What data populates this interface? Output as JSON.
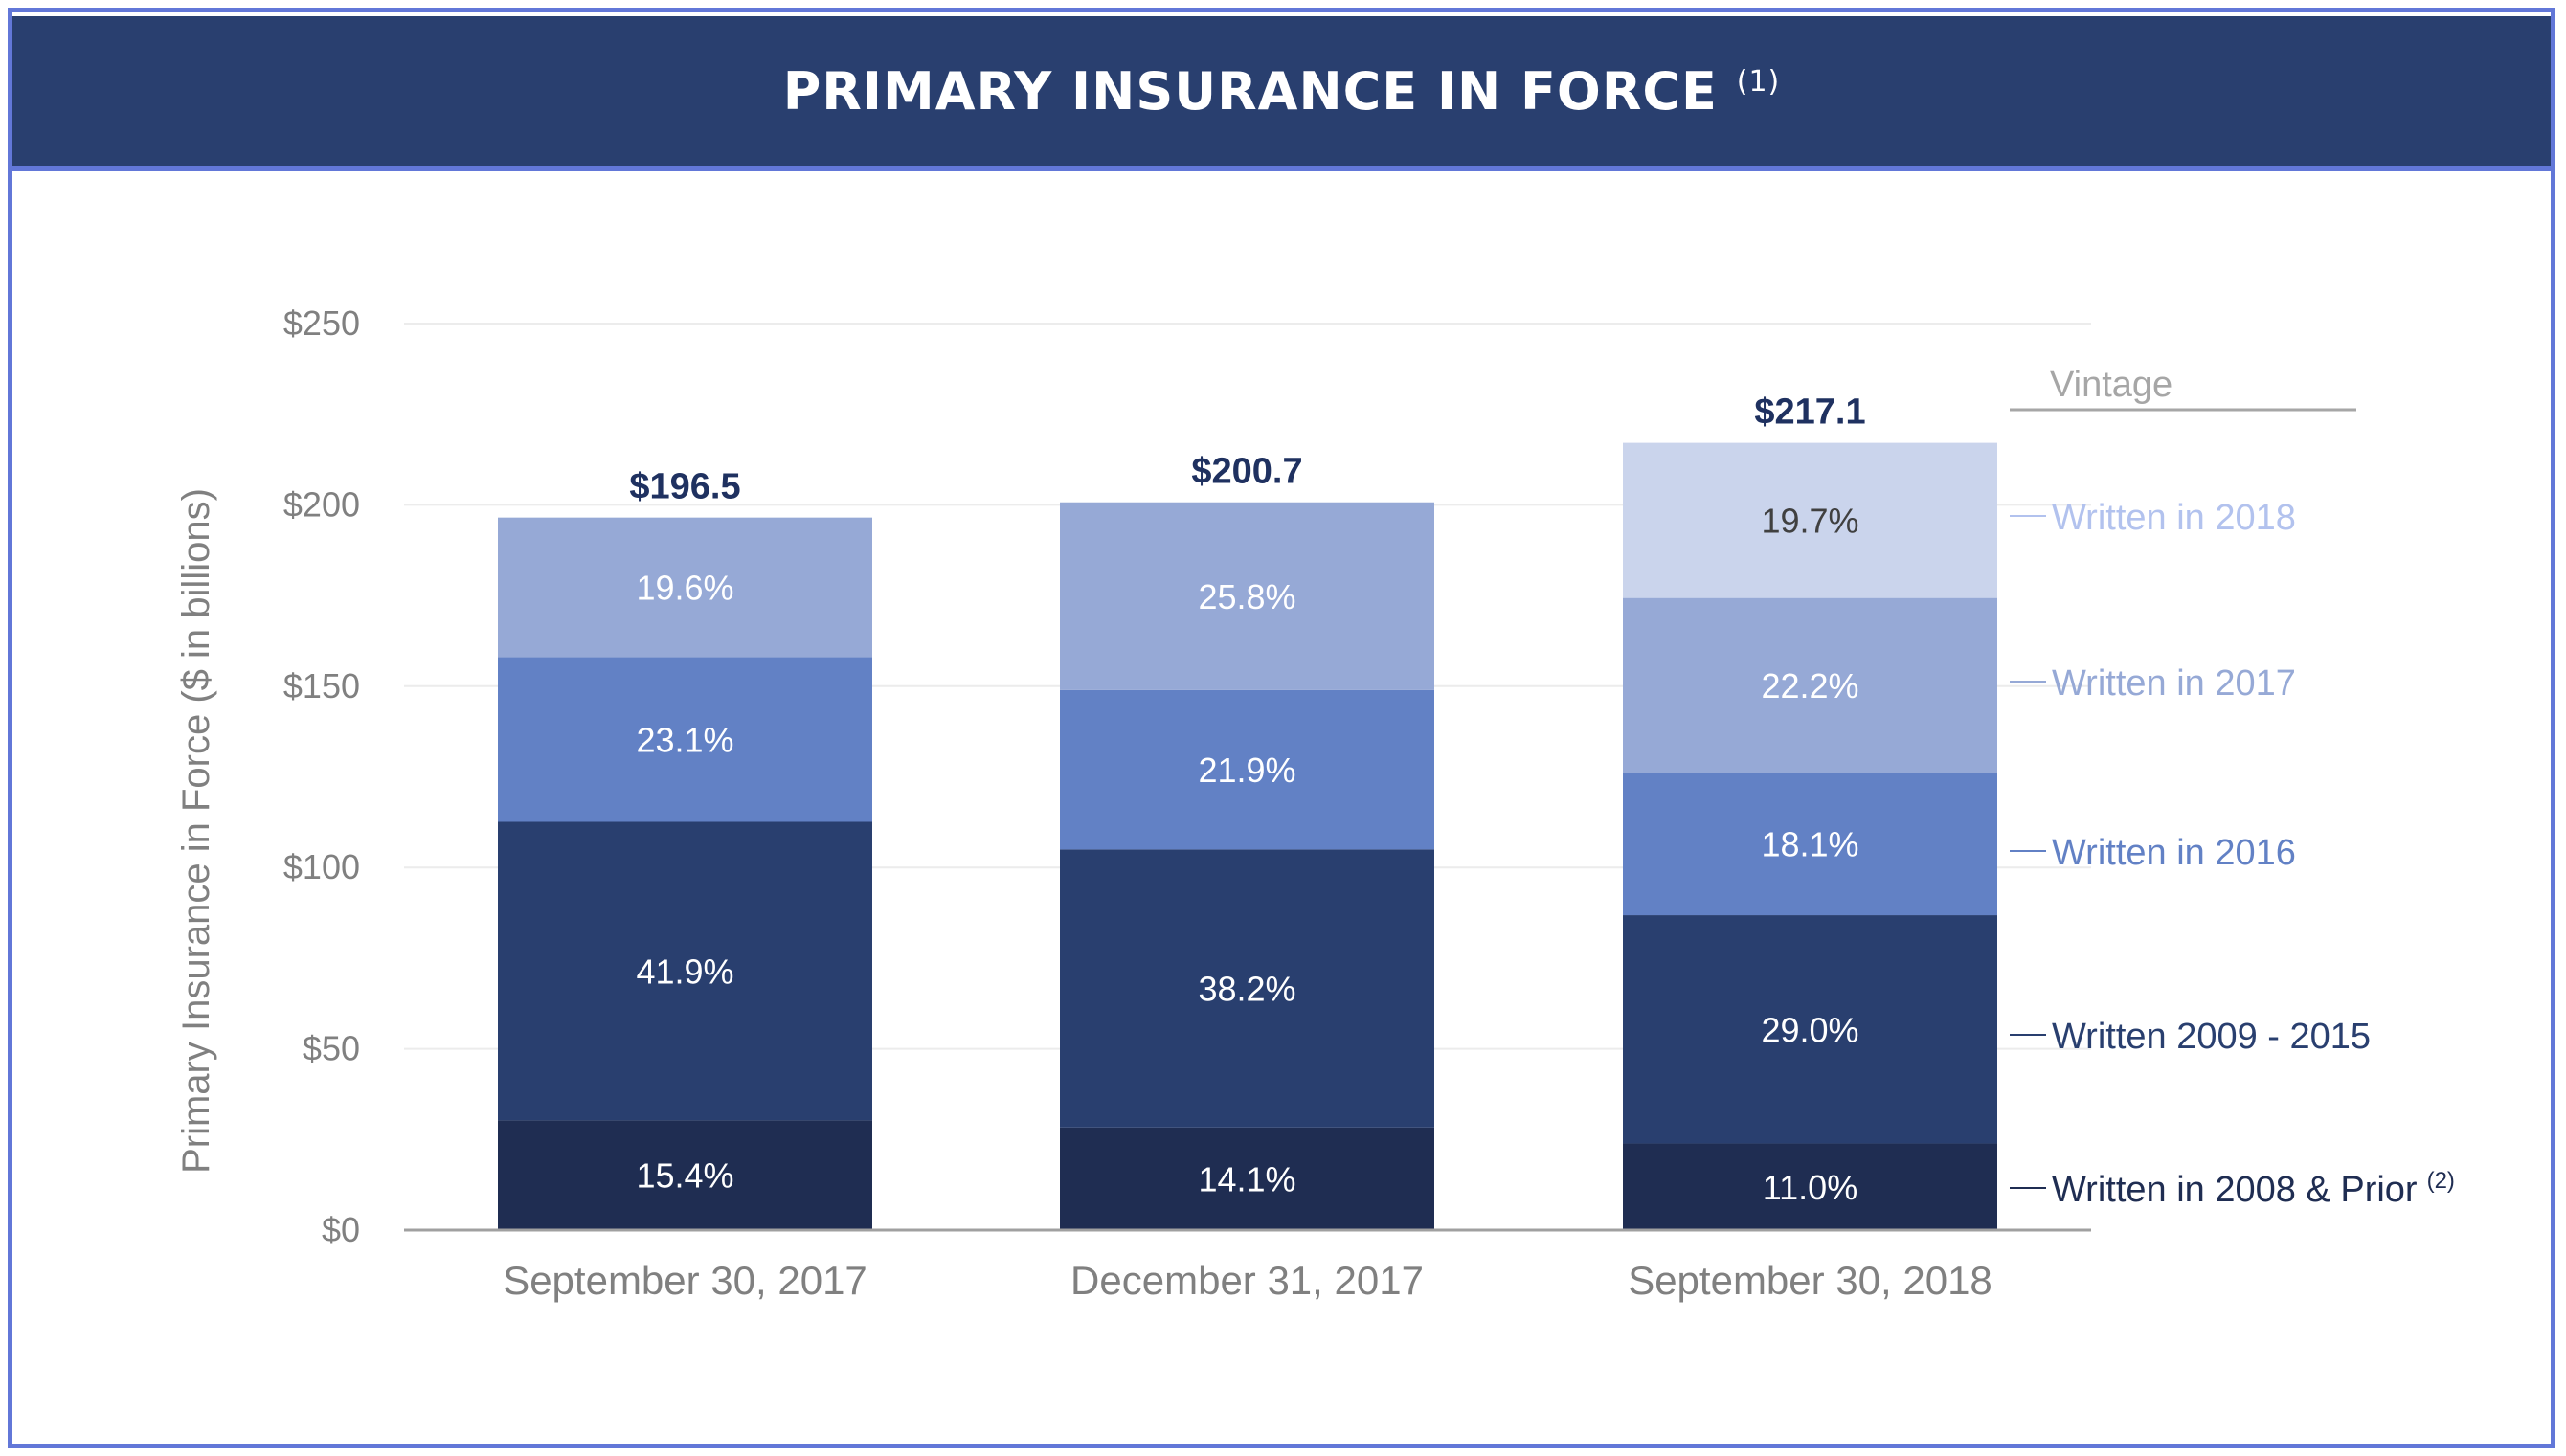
{
  "title": "PRIMARY INSURANCE IN FORCE",
  "title_footnote": "(1)",
  "chart_data": {
    "type": "bar",
    "stacked": true,
    "ylabel": "Primary Insurance in Force ($ in billions)",
    "ylim": [
      0,
      250
    ],
    "yticks": [
      0,
      50,
      100,
      150,
      200,
      250
    ],
    "ytick_labels": [
      "$0",
      "$50",
      "$100",
      "$150",
      "$200",
      "$250"
    ],
    "grid": true,
    "categories": [
      "September 30, 2017",
      "December 31, 2017",
      "September 30, 2018"
    ],
    "totals": [
      196.5,
      200.7,
      217.1
    ],
    "total_labels": [
      "$196.5",
      "$200.7",
      "$217.1"
    ],
    "legend_title": "Vintage",
    "legend_placement": "right",
    "series": [
      {
        "name": "Written in 2008 & Prior",
        "footnote": "(2)",
        "color": "#1f2d52",
        "label_color": "#ffffff",
        "values_pct": [
          15.4,
          14.1,
          11.0
        ],
        "labels": [
          "15.4%",
          "14.1%",
          "11.0%"
        ]
      },
      {
        "name": "Written 2009 - 2015",
        "color": "#293f6f",
        "label_color": "#ffffff",
        "values_pct": [
          41.9,
          38.2,
          29.0
        ],
        "labels": [
          "41.9%",
          "38.2%",
          "29.0%"
        ]
      },
      {
        "name": "Written in 2016",
        "color": "#6281c5",
        "label_color": "#ffffff",
        "values_pct": [
          23.1,
          21.9,
          18.1
        ],
        "labels": [
          "23.1%",
          "21.9%",
          "18.1%"
        ]
      },
      {
        "name": "Written in 2017",
        "color": "#96a9d6",
        "label_color": "#ffffff",
        "values_pct": [
          19.6,
          25.8,
          22.2
        ],
        "labels": [
          "19.6%",
          "25.8%",
          "22.2%"
        ]
      },
      {
        "name": "Written in 2018",
        "color": "#cad4ec",
        "legend_color": "#b2c2ee",
        "label_color": "#404040",
        "values_pct": [
          null,
          null,
          19.7
        ],
        "labels": [
          null,
          null,
          "19.7%"
        ]
      }
    ]
  }
}
